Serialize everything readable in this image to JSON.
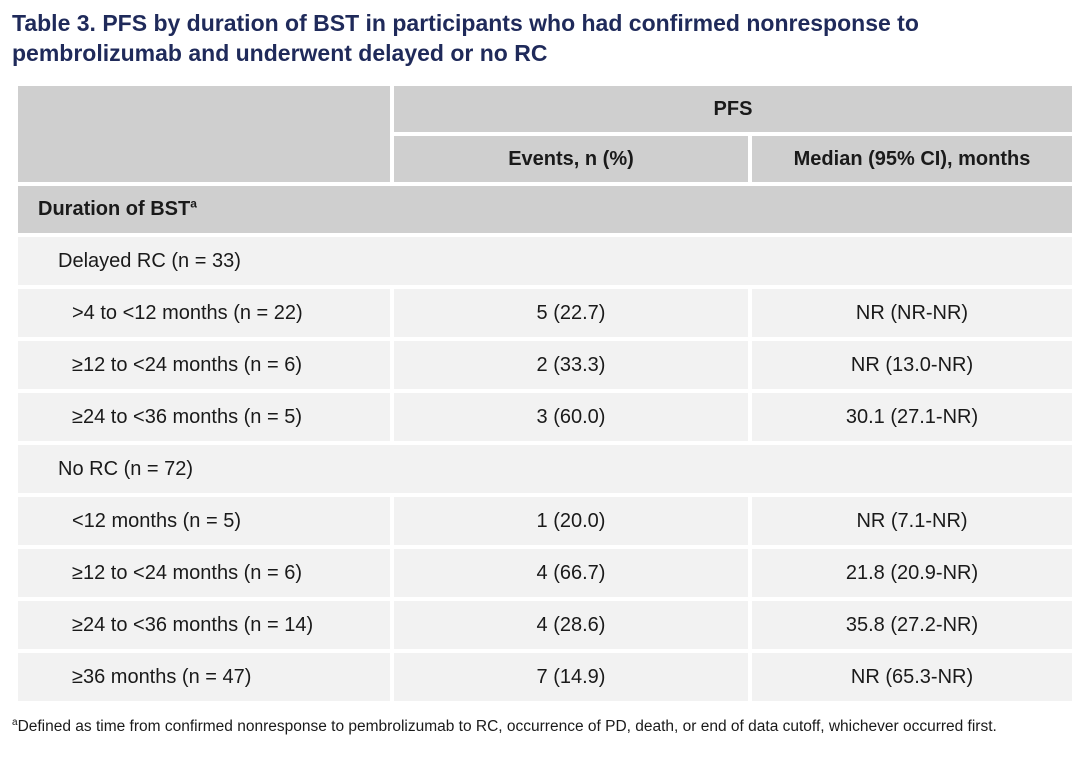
{
  "title": "Table 3. PFS by duration of BST in participants who had confirmed nonresponse to pembrolizumab and underwent delayed or no RC",
  "header": {
    "group": "PFS",
    "col_events": "Events, n (%)",
    "col_median": "Median (95% CI), months"
  },
  "section": {
    "label": "Duration of BST",
    "marker": "a"
  },
  "groups": [
    {
      "label": "Delayed RC (n = 33)",
      "rows": [
        {
          "label": ">4 to <12 months (n = 22)",
          "events": "5 (22.7)",
          "median": "NR (NR-NR)"
        },
        {
          "label": "≥12 to <24 months (n = 6)",
          "events": "2 (33.3)",
          "median": "NR (13.0-NR)"
        },
        {
          "label": "≥24 to <36 months (n = 5)",
          "events": "3 (60.0)",
          "median": "30.1 (27.1-NR)"
        }
      ]
    },
    {
      "label": "No RC (n = 72)",
      "rows": [
        {
          "label": "<12 months (n = 5)",
          "events": "1 (20.0)",
          "median": "NR (7.1-NR)"
        },
        {
          "label": "≥12 to <24 months (n = 6)",
          "events": "4 (66.7)",
          "median": "21.8 (20.9-NR)"
        },
        {
          "label": "≥24 to <36 months (n = 14)",
          "events": "4 (28.6)",
          "median": "35.8 (27.2-NR)"
        },
        {
          "label": "≥36 months (n = 47)",
          "events": "7 (14.9)",
          "median": "NR (65.3-NR)"
        }
      ]
    }
  ],
  "footnote": {
    "marker": "a",
    "text": "Defined as time from confirmed nonresponse to pembrolizumab to RC, occurrence of PD, death, or end of data cutoff, whichever occurred first."
  }
}
